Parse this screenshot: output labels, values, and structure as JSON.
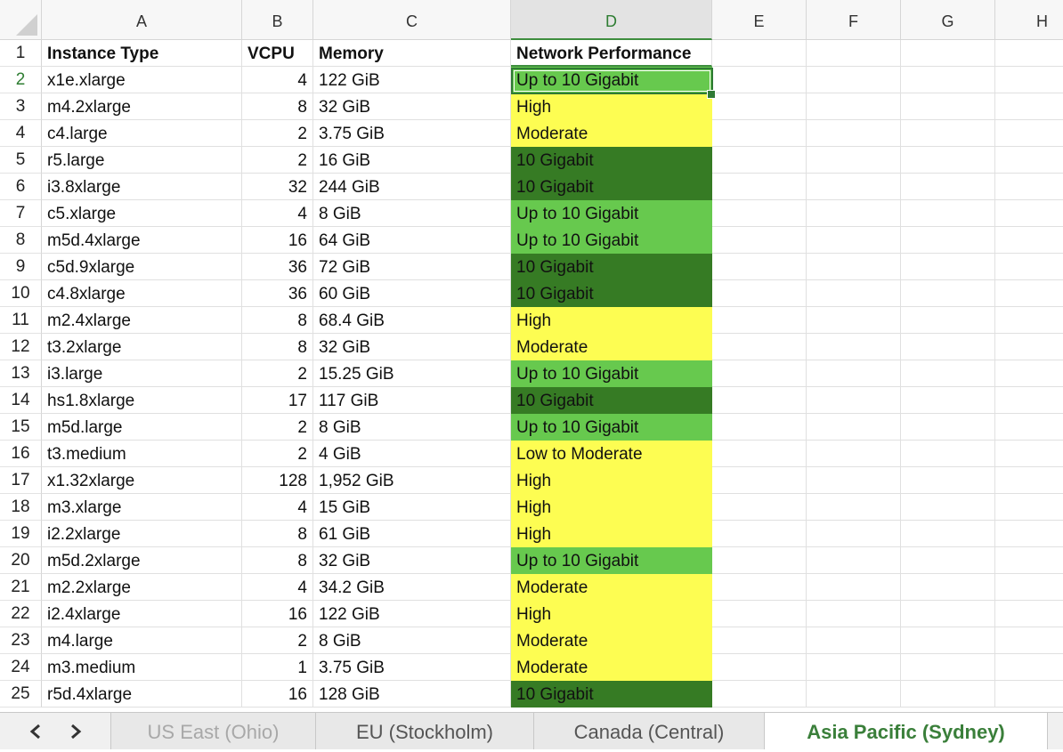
{
  "columns": [
    "A",
    "B",
    "C",
    "D",
    "E",
    "F",
    "G",
    "H"
  ],
  "header_row": {
    "row": "1",
    "instance_type": "Instance Type",
    "vcpu": "VCPU",
    "memory": "Memory",
    "network": "Network Performance"
  },
  "rows": [
    {
      "row": "2",
      "instance_type": "x1e.xlarge",
      "vcpu": "4",
      "memory": "122 GiB",
      "network": "Up to 10 Gigabit"
    },
    {
      "row": "3",
      "instance_type": "m4.2xlarge",
      "vcpu": "8",
      "memory": "32 GiB",
      "network": "High"
    },
    {
      "row": "4",
      "instance_type": "c4.large",
      "vcpu": "2",
      "memory": "3.75 GiB",
      "network": "Moderate"
    },
    {
      "row": "5",
      "instance_type": "r5.large",
      "vcpu": "2",
      "memory": "16 GiB",
      "network": "10 Gigabit"
    },
    {
      "row": "6",
      "instance_type": "i3.8xlarge",
      "vcpu": "32",
      "memory": "244 GiB",
      "network": "10 Gigabit"
    },
    {
      "row": "7",
      "instance_type": "c5.xlarge",
      "vcpu": "4",
      "memory": "8 GiB",
      "network": "Up to 10 Gigabit"
    },
    {
      "row": "8",
      "instance_type": "m5d.4xlarge",
      "vcpu": "16",
      "memory": "64 GiB",
      "network": "Up to 10 Gigabit"
    },
    {
      "row": "9",
      "instance_type": "c5d.9xlarge",
      "vcpu": "36",
      "memory": "72 GiB",
      "network": "10 Gigabit"
    },
    {
      "row": "10",
      "instance_type": "c4.8xlarge",
      "vcpu": "36",
      "memory": "60 GiB",
      "network": "10 Gigabit"
    },
    {
      "row": "11",
      "instance_type": "m2.4xlarge",
      "vcpu": "8",
      "memory": "68.4 GiB",
      "network": "High"
    },
    {
      "row": "12",
      "instance_type": "t3.2xlarge",
      "vcpu": "8",
      "memory": "32 GiB",
      "network": "Moderate"
    },
    {
      "row": "13",
      "instance_type": "i3.large",
      "vcpu": "2",
      "memory": "15.25 GiB",
      "network": "Up to 10 Gigabit"
    },
    {
      "row": "14",
      "instance_type": "hs1.8xlarge",
      "vcpu": "17",
      "memory": "117 GiB",
      "network": "10 Gigabit"
    },
    {
      "row": "15",
      "instance_type": "m5d.large",
      "vcpu": "2",
      "memory": "8 GiB",
      "network": "Up to 10 Gigabit"
    },
    {
      "row": "16",
      "instance_type": "t3.medium",
      "vcpu": "2",
      "memory": "4 GiB",
      "network": "Low to Moderate"
    },
    {
      "row": "17",
      "instance_type": "x1.32xlarge",
      "vcpu": "128",
      "memory": "1,952 GiB",
      "network": "High"
    },
    {
      "row": "18",
      "instance_type": "m3.xlarge",
      "vcpu": "4",
      "memory": "15 GiB",
      "network": "High"
    },
    {
      "row": "19",
      "instance_type": "i2.2xlarge",
      "vcpu": "8",
      "memory": "61 GiB",
      "network": "High"
    },
    {
      "row": "20",
      "instance_type": "m5d.2xlarge",
      "vcpu": "8",
      "memory": "32 GiB",
      "network": "Up to 10 Gigabit"
    },
    {
      "row": "21",
      "instance_type": "m2.2xlarge",
      "vcpu": "4",
      "memory": "34.2 GiB",
      "network": "Moderate"
    },
    {
      "row": "22",
      "instance_type": "i2.4xlarge",
      "vcpu": "16",
      "memory": "122 GiB",
      "network": "High"
    },
    {
      "row": "23",
      "instance_type": "m4.large",
      "vcpu": "2",
      "memory": "8 GiB",
      "network": "Moderate"
    },
    {
      "row": "24",
      "instance_type": "m3.medium",
      "vcpu": "1",
      "memory": "3.75 GiB",
      "network": "Moderate"
    },
    {
      "row": "25",
      "instance_type": "r5d.4xlarge",
      "vcpu": "16",
      "memory": "128 GiB",
      "network": "10 Gigabit"
    }
  ],
  "perf_colors": {
    "10 Gigabit": "#367b24",
    "Up to 10 Gigabit": "#67c94e",
    "High": "#fdfd52",
    "Moderate": "#fdfd52",
    "Low to Moderate": "#fdfd52"
  },
  "selected_cell": "D2",
  "tabs": [
    {
      "label": "US East (Ohio)",
      "active": false
    },
    {
      "label": "EU (Stockholm)",
      "active": false
    },
    {
      "label": "Canada (Central)",
      "active": false
    },
    {
      "label": "Asia Pacific (Sydney)",
      "active": true
    }
  ],
  "icons": {
    "prev": "chevron-left-icon",
    "next": "chevron-right-icon"
  }
}
